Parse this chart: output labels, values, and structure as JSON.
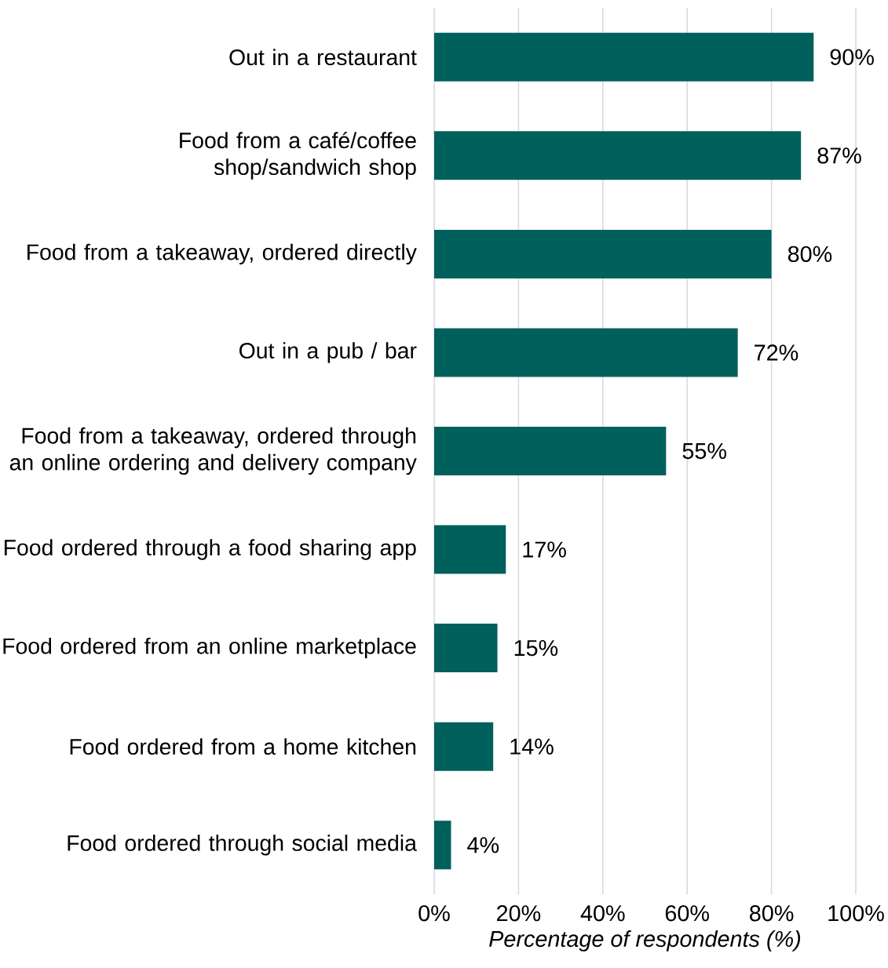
{
  "chart_data": {
    "type": "bar",
    "orientation": "horizontal",
    "xlabel": "Percentage of respondents (%)",
    "categories": [
      "Out in a restaurant",
      "Food from a café/coffee shop/sandwich shop",
      "Food from a takeaway, ordered directly",
      "Out in a pub / bar",
      "Food from a takeaway, ordered through an online ordering and delivery company",
      "Food ordered through a food sharing app",
      "Food ordered from an online marketplace",
      "Food ordered from a home kitchen",
      "Food ordered through social media"
    ],
    "values": [
      90,
      87,
      80,
      72,
      55,
      17,
      15,
      14,
      4
    ],
    "value_labels": [
      "90%",
      "87%",
      "80%",
      "72%",
      "55%",
      "17%",
      "15%",
      "14%",
      "4%"
    ],
    "color": "#00605c",
    "xlim": [
      0,
      100
    ],
    "xticks": [
      {
        "value": 0,
        "label": "0%"
      },
      {
        "value": 20,
        "label": "20%"
      },
      {
        "value": 40,
        "label": "40%"
      },
      {
        "value": 60,
        "label": "60%"
      },
      {
        "value": 80,
        "label": "80%"
      },
      {
        "value": 100,
        "label": "100%"
      }
    ],
    "grid": "x"
  }
}
